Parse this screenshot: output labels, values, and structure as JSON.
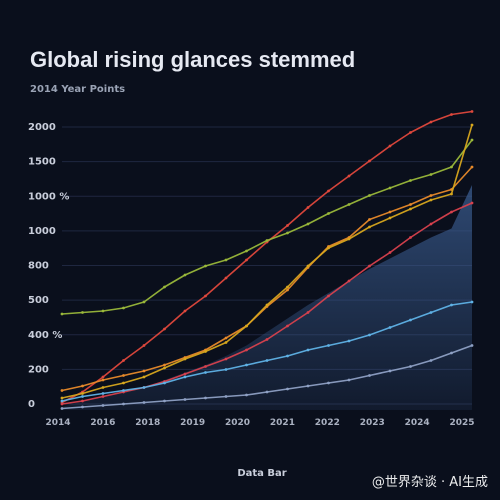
{
  "watermark": "@世界杂谈 · AI生成",
  "chart_data": {
    "type": "line",
    "title": "Global rising glances stemmed",
    "subtitle": "2014   Year   Points",
    "xlabel": "Data Bar",
    "x": [
      0,
      1,
      2,
      3,
      4,
      5,
      6,
      7,
      8,
      9,
      10,
      11,
      12,
      13,
      14,
      15,
      16,
      17,
      18,
      19,
      20
    ],
    "y_tick_labels": [
      "2000",
      "1500",
      "1000 %",
      "1000",
      "800",
      "500",
      "400 %",
      "200",
      "0"
    ],
    "x_tick_labels": [
      "2014",
      "2016",
      "2018",
      "2019",
      "2020",
      "2021",
      "2022",
      "2023",
      "2024",
      "2025"
    ],
    "ylim": [
      0,
      2000
    ],
    "grid": true,
    "colors": {
      "background": "#0a0f1c",
      "grid": "#1f2740",
      "area": "#3a5c8f"
    },
    "series": [
      {
        "color": "#e0483c",
        "values": [
          50,
          120,
          220,
          330,
          430,
          540,
          660,
          760,
          880,
          1000,
          1120,
          1230,
          1350,
          1460,
          1560,
          1660,
          1760,
          1850,
          1920,
          1970,
          1990
        ]
      },
      {
        "color": "#9ab83a",
        "values": [
          640,
          650,
          660,
          680,
          720,
          820,
          900,
          960,
          1000,
          1060,
          1130,
          1180,
          1240,
          1310,
          1370,
          1430,
          1480,
          1530,
          1570,
          1620,
          1800
        ]
      },
      {
        "color": "#e88a2a",
        "values": [
          130,
          160,
          200,
          230,
          260,
          300,
          350,
          400,
          480,
          560,
          690,
          800,
          950,
          1090,
          1150,
          1270,
          1320,
          1370,
          1430,
          1470,
          1620
        ]
      },
      {
        "color": "#d7a71d",
        "values": [
          80,
          110,
          150,
          180,
          220,
          280,
          340,
          390,
          450,
          560,
          700,
          820,
          960,
          1080,
          1140,
          1220,
          1280,
          1340,
          1400,
          1440,
          1900
        ]
      },
      {
        "color": "#d8414d",
        "values": [
          40,
          60,
          90,
          120,
          150,
          190,
          240,
          290,
          340,
          400,
          470,
          560,
          650,
          760,
          860,
          960,
          1050,
          1150,
          1240,
          1320,
          1380
        ]
      },
      {
        "color": "#5fb2e6",
        "values": [
          60,
          90,
          110,
          130,
          150,
          180,
          220,
          250,
          270,
          300,
          330,
          360,
          400,
          430,
          460,
          500,
          550,
          600,
          650,
          700,
          720
        ]
      },
      {
        "color": "#8ea0c4",
        "values": [
          10,
          20,
          30,
          40,
          50,
          60,
          70,
          80,
          90,
          100,
          120,
          140,
          160,
          180,
          200,
          230,
          260,
          290,
          330,
          380,
          430
        ]
      }
    ],
    "area_values": [
      20,
      60,
      90,
      120,
      150,
      200,
      250,
      300,
      360,
      430,
      520,
      610,
      700,
      780,
      860,
      940,
      1010,
      1080,
      1150,
      1210,
      1500
    ]
  }
}
